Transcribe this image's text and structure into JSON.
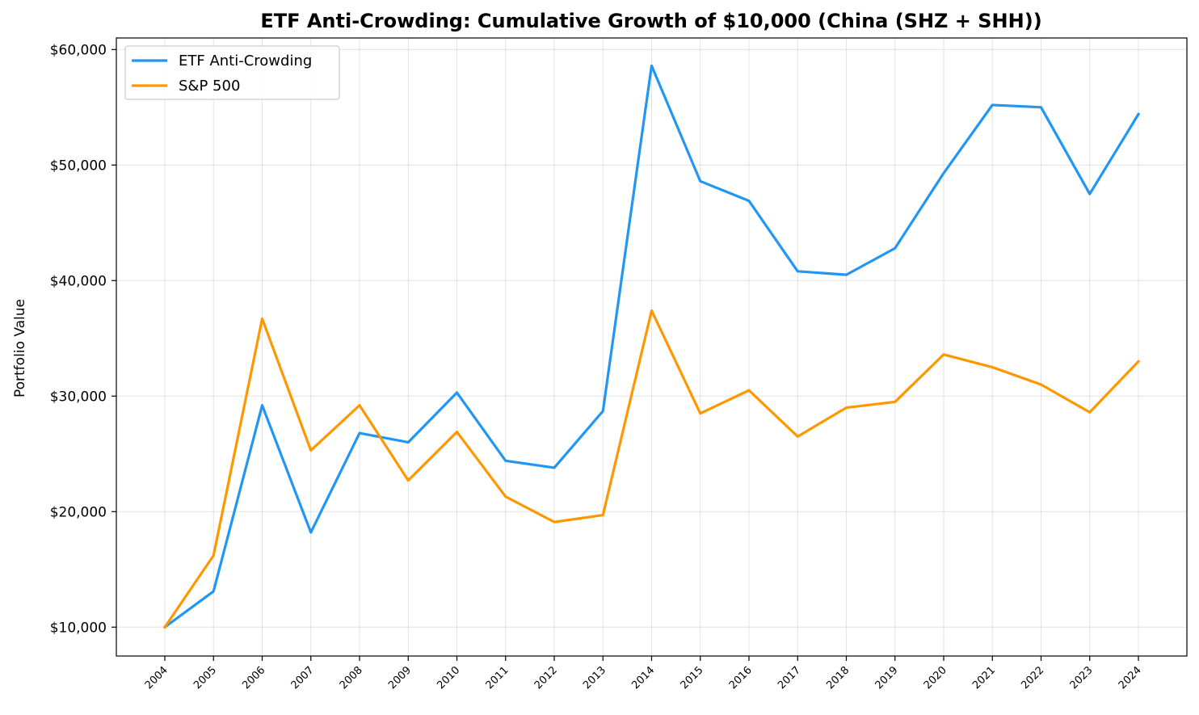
{
  "chart_data": {
    "type": "line",
    "title": "ETF Anti-Crowding: Cumulative Growth of $10,000 (China (SHZ + SHH))",
    "xlabel": "",
    "ylabel": "Portfolio Value",
    "categories": [
      "2004",
      "2005",
      "2006",
      "2007",
      "2008",
      "2009",
      "2010",
      "2011",
      "2012",
      "2013",
      "2014",
      "2015",
      "2016",
      "2017",
      "2018",
      "2019",
      "2020",
      "2021",
      "2022",
      "2023",
      "2024"
    ],
    "ylim": [
      7500,
      61000
    ],
    "yticks": [
      10000,
      20000,
      30000,
      40000,
      50000,
      60000
    ],
    "ytick_labels": [
      "$10,000",
      "$20,000",
      "$30,000",
      "$40,000",
      "$50,000",
      "$60,000"
    ],
    "grid": true,
    "legend_position": "top-left",
    "series": [
      {
        "name": "ETF Anti-Crowding",
        "color": "#2196F3",
        "values": [
          10000,
          13100,
          29200,
          18200,
          26800,
          26000,
          30300,
          24400,
          23800,
          28700,
          58600,
          48600,
          46900,
          40800,
          40500,
          42800,
          49300,
          55200,
          55000,
          47500,
          54400
        ]
      },
      {
        "name": "S&P 500",
        "color": "#FF9800",
        "values": [
          10000,
          16200,
          36700,
          25300,
          29200,
          22700,
          26900,
          21300,
          19100,
          19700,
          37400,
          28500,
          30500,
          26500,
          29000,
          29500,
          33600,
          32500,
          31000,
          28600,
          33000
        ]
      }
    ]
  }
}
